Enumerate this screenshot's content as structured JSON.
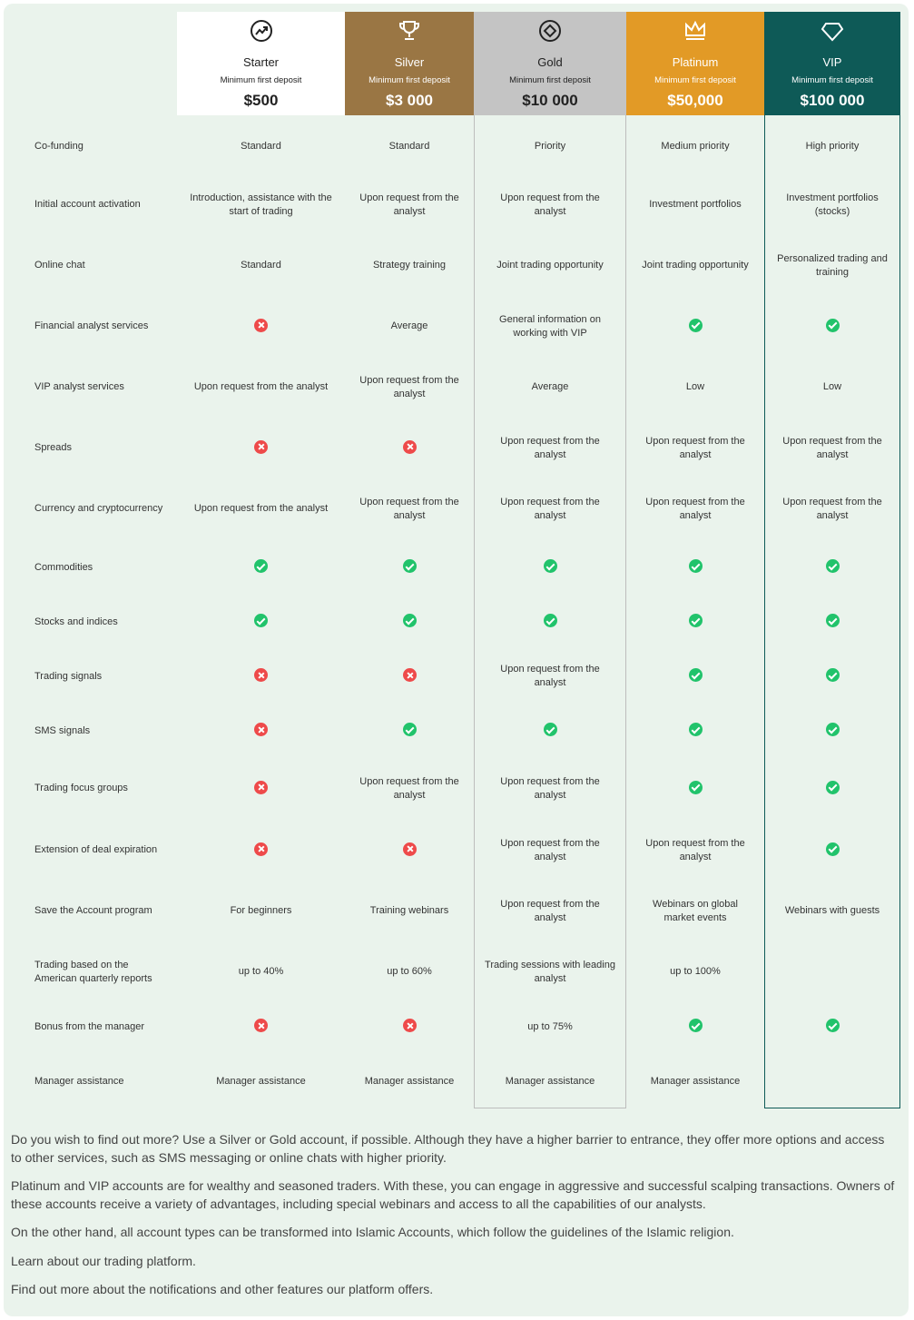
{
  "plans": [
    {
      "name": "Starter",
      "min_label": "Minimum first deposit",
      "price": "$500",
      "icon": "chart-trend-icon",
      "bg": "#ffffff",
      "fg": "#222222"
    },
    {
      "name": "Silver",
      "min_label": "Minimum first deposit",
      "price": "$3 000",
      "icon": "trophy-icon",
      "bg": "#9a7644",
      "fg": "#ffffff"
    },
    {
      "name": "Gold",
      "min_label": "Minimum first deposit",
      "price": "$10 000",
      "icon": "diamond-circle-icon",
      "bg": "#c4c4c4",
      "fg": "#222222"
    },
    {
      "name": "Platinum",
      "min_label": "Minimum first deposit",
      "price": "$50,000",
      "icon": "crown-icon",
      "bg": "#e29a26",
      "fg": "#ffffff"
    },
    {
      "name": "VIP",
      "min_label": "Minimum first deposit",
      "price": "$100 000",
      "icon": "diamond-icon",
      "bg": "#0e5a57",
      "fg": "#ffffff"
    }
  ],
  "rows": [
    {
      "label": "Co-funding",
      "cells": [
        "Standard",
        "Standard",
        "Priority",
        "Medium priority",
        "High priority"
      ]
    },
    {
      "label": "Initial account activation",
      "cells": [
        "Introduction, assistance with the start of trading",
        "Upon request from the analyst",
        "Upon request from the analyst",
        "Investment portfolios",
        "Investment portfolios (stocks)"
      ]
    },
    {
      "label": "Online chat",
      "cells": [
        "Standard",
        "Strategy training",
        "Joint trading opportunity",
        "Joint trading opportunity",
        "Personalized trading and training"
      ]
    },
    {
      "label": "Financial analyst services",
      "cells": [
        "no",
        "Average",
        "General information on working with VIP",
        "yes",
        "yes"
      ]
    },
    {
      "label": "VIP analyst services",
      "cells": [
        "Upon request from the analyst",
        "Upon request from the analyst",
        "Average",
        "Low",
        "Low"
      ]
    },
    {
      "label": "Spreads",
      "cells": [
        "no",
        "no",
        "Upon request from the analyst",
        "Upon request from the analyst",
        "Upon request from the analyst"
      ]
    },
    {
      "label": "Currency and cryptocurrency",
      "cells": [
        "Upon request from the analyst",
        "Upon request from the analyst",
        "Upon request from the analyst",
        "Upon request from the analyst",
        "Upon request from the analyst"
      ]
    },
    {
      "label": "Commodities",
      "cells": [
        "yes",
        "yes",
        "yes",
        "yes",
        "yes"
      ]
    },
    {
      "label": "Stocks and indices",
      "cells": [
        "yes",
        "yes",
        "yes",
        "yes",
        "yes"
      ]
    },
    {
      "label": "Trading signals",
      "cells": [
        "no",
        "no",
        "Upon request from the analyst",
        "yes",
        "yes"
      ]
    },
    {
      "label": "SMS signals",
      "cells": [
        "no",
        "yes",
        "yes",
        "yes",
        "yes"
      ]
    },
    {
      "label": "Trading focus groups",
      "cells": [
        "no",
        "Upon request from the analyst",
        "Upon request from the analyst",
        "yes",
        "yes"
      ]
    },
    {
      "label": "Extension of deal expiration",
      "cells": [
        "no",
        "no",
        "Upon request from the analyst",
        "Upon request from the analyst",
        "yes"
      ]
    },
    {
      "label": "Save the Account program",
      "cells": [
        "For beginners",
        "Training webinars",
        "Upon request from the analyst",
        "Webinars on global market events",
        "Webinars with guests"
      ]
    },
    {
      "label": "Trading based on the American quarterly reports",
      "cells": [
        "up to 40%",
        "up to 60%",
        "Trading sessions with leading analyst",
        "up to 100%",
        ""
      ]
    },
    {
      "label": "Bonus from the manager",
      "cells": [
        "no",
        "no",
        "up to 75%",
        "yes",
        "yes"
      ]
    },
    {
      "label": "Manager assistance",
      "cells": [
        "Manager assistance",
        "Manager assistance",
        "Manager assistance",
        "Manager assistance",
        ""
      ]
    }
  ],
  "paragraphs": [
    "Do you wish to find out more? Use a Silver or Gold account, if possible. Although they have a higher barrier to entrance, they offer more options and access to other services, such as SMS messaging or online chats with higher priority.",
    "Platinum and VIP accounts are for wealthy and seasoned traders. With these, you can engage in aggressive and successful scalping transactions. Owners of these accounts receive a variety of advantages, including special webinars and access to all the capabilities of our analysts.",
    "On the other hand, all account types can be transformed into Islamic Accounts, which follow the guidelines of the Islamic religion.",
    "Learn about our trading platform.",
    "Find out more about the notifications and other features our platform offers."
  ]
}
